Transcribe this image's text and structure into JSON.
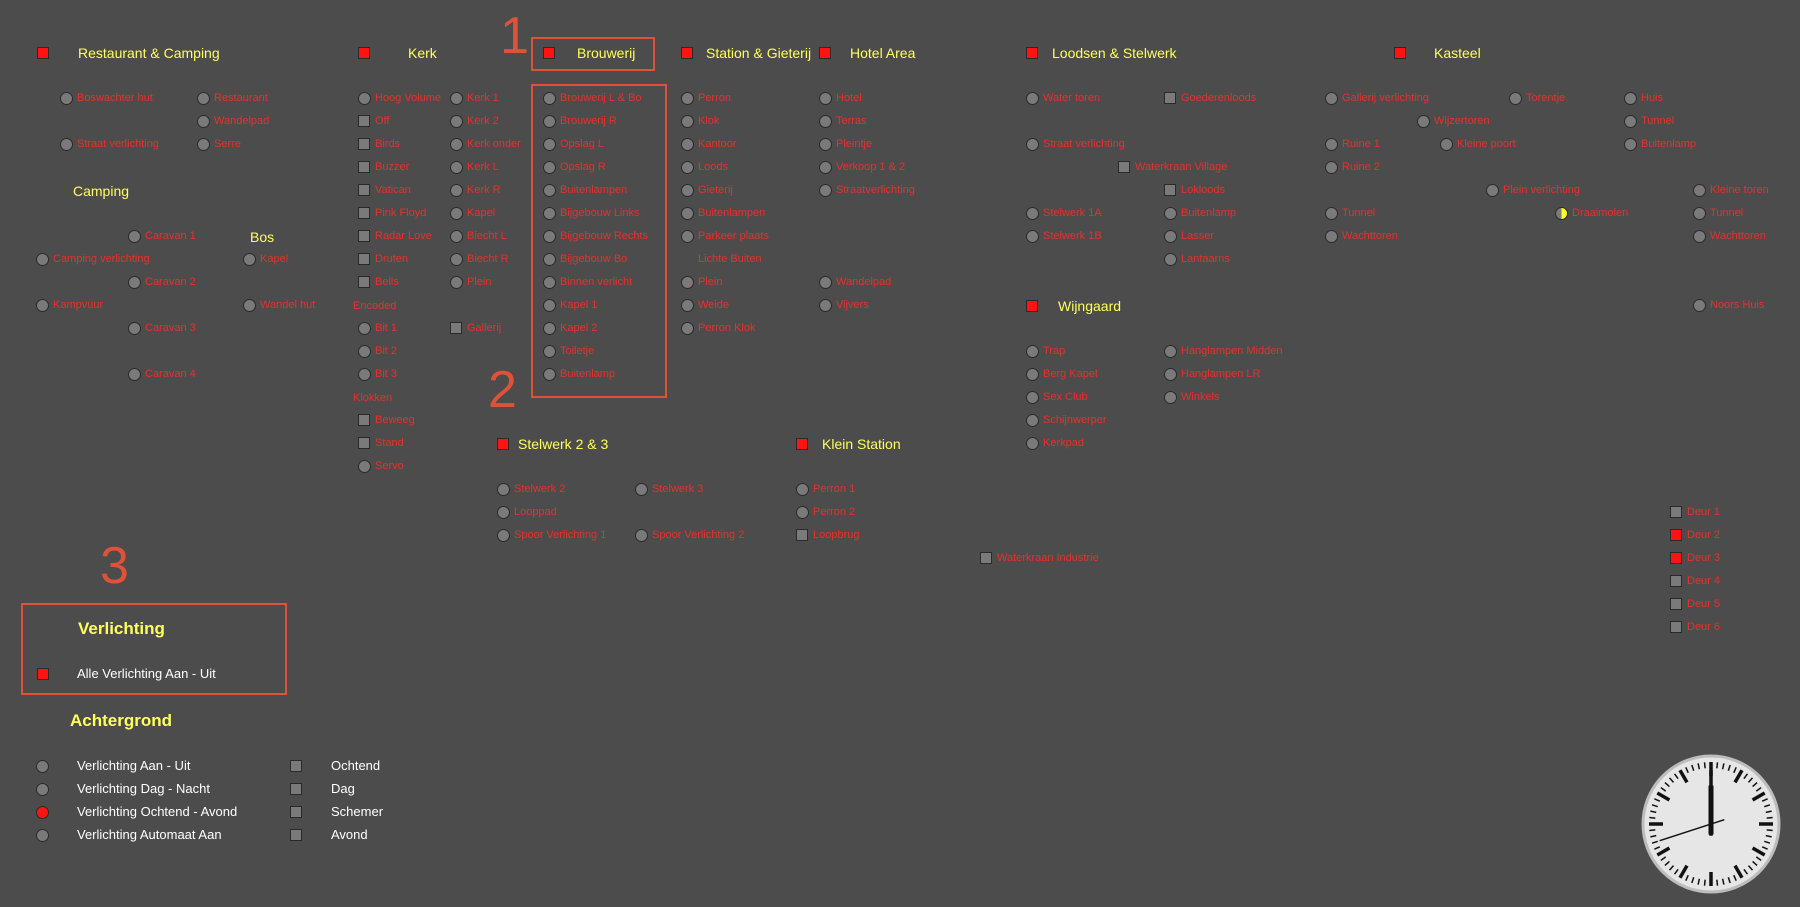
{
  "colors": {
    "bg": "#4c4c4c",
    "heading": "#ffff5a",
    "label": "#e8302c",
    "red": "#ff1212",
    "yellow": "#ffff22",
    "green": "#18c218",
    "off": "#7a7a7a",
    "annotation": "#e05238"
  },
  "annotations": {
    "n1": "1",
    "n2": "2",
    "n3": "3"
  },
  "headers": [
    {
      "text": "Restaurant & Camping",
      "state": "red"
    },
    {
      "text": "Kerk",
      "state": "red"
    },
    {
      "text": "Brouwerij",
      "state": "red"
    },
    {
      "text": "Station & Gieterij",
      "state": "red"
    },
    {
      "text": "Hotel Area",
      "state": "red"
    },
    {
      "text": "Loodsen & Stelwerk",
      "state": "red"
    },
    {
      "text": "Kasteel",
      "state": "red"
    },
    {
      "text": "Wijngaard",
      "state": "red"
    },
    {
      "text": "Stelwerk 2 & 3",
      "state": "red"
    },
    {
      "text": "Klein Station",
      "state": "red"
    }
  ],
  "subheaders": {
    "camping": "Camping",
    "bos": "Bos",
    "encoded": "Encoded",
    "klokken": "Klokken"
  },
  "items": [
    {
      "text": "Boswachter hut",
      "icon": "circle",
      "state": "off"
    },
    {
      "text": "Restaurant",
      "icon": "circle",
      "state": "off"
    },
    {
      "text": "Wandelpad",
      "icon": "circle",
      "state": "off"
    },
    {
      "text": "Straat verlichting",
      "icon": "circle",
      "state": "off"
    },
    {
      "text": "Serre",
      "icon": "circle",
      "state": "off"
    },
    {
      "text": "Caravan 1",
      "icon": "circle",
      "state": "off"
    },
    {
      "text": "Camping verlichting",
      "icon": "circle",
      "state": "off"
    },
    {
      "text": "Kapel",
      "icon": "circle",
      "state": "off"
    },
    {
      "text": "Caravan 2",
      "icon": "circle",
      "state": "off"
    },
    {
      "text": "Kampvuur",
      "icon": "circle",
      "state": "off"
    },
    {
      "text": "Wandel hut",
      "icon": "circle",
      "state": "off"
    },
    {
      "text": "Caravan 3",
      "icon": "circle",
      "state": "off"
    },
    {
      "text": "Caravan 4",
      "icon": "circle",
      "state": "off"
    },
    {
      "text": "Hoog Volume",
      "icon": "circle",
      "state": "off"
    },
    {
      "text": "Off",
      "icon": "square",
      "state": "yellow"
    },
    {
      "text": "Birds",
      "icon": "square",
      "state": "off"
    },
    {
      "text": "Buzzer",
      "icon": "square",
      "state": "off"
    },
    {
      "text": "Vatican",
      "icon": "square",
      "state": "off"
    },
    {
      "text": "Pink Floyd",
      "icon": "square",
      "state": "off"
    },
    {
      "text": "Radar Love",
      "icon": "square",
      "state": "off"
    },
    {
      "text": "Druten",
      "icon": "square",
      "state": "yellow"
    },
    {
      "text": "Bells",
      "icon": "square",
      "state": "off"
    },
    {
      "text": "Bit 1",
      "icon": "circle",
      "state": "yellow"
    },
    {
      "text": "Bit 2",
      "icon": "circle",
      "state": "yellow"
    },
    {
      "text": "Bit 3",
      "icon": "circle",
      "state": "yellow"
    },
    {
      "text": "Beweeg",
      "icon": "square",
      "state": "off"
    },
    {
      "text": "Stand",
      "icon": "square",
      "state": "off"
    },
    {
      "text": "Servo",
      "icon": "circle",
      "state": "off"
    },
    {
      "text": "Kerk 1",
      "icon": "circle",
      "state": "off"
    },
    {
      "text": "Kerk 2",
      "icon": "circle",
      "state": "off"
    },
    {
      "text": "Kerk onder",
      "icon": "circle",
      "state": "off"
    },
    {
      "text": "Kerk L",
      "icon": "circle",
      "state": "off"
    },
    {
      "text": "Kerk R",
      "icon": "circle",
      "state": "off"
    },
    {
      "text": "Kapel",
      "icon": "circle",
      "state": "off"
    },
    {
      "text": "Biecht L",
      "icon": "circle",
      "state": "off"
    },
    {
      "text": "Biecht R",
      "icon": "circle",
      "state": "off"
    },
    {
      "text": "Plein",
      "icon": "circle",
      "state": "off"
    },
    {
      "text": "Gallerij",
      "icon": "square",
      "state": "off"
    },
    {
      "text": "Brouwerij L & Bo",
      "icon": "circle",
      "state": "off"
    },
    {
      "text": "Brouwerij R",
      "icon": "circle",
      "state": "off"
    },
    {
      "text": "Opslag L",
      "icon": "circle",
      "state": "off"
    },
    {
      "text": "Opslag R",
      "icon": "circle",
      "state": "off"
    },
    {
      "text": "Buitenlampen",
      "icon": "circle",
      "state": "off"
    },
    {
      "text": "Bijgebouw Links",
      "icon": "circle",
      "state": "off"
    },
    {
      "text": "Bijgebouw Rechts",
      "icon": "circle",
      "state": "off"
    },
    {
      "text": "Bijgebouw Bo",
      "icon": "circle",
      "state": "off"
    },
    {
      "text": "Binnen verlicht",
      "icon": "circle",
      "state": "off"
    },
    {
      "text": "Kapel 1",
      "icon": "circle",
      "state": "off"
    },
    {
      "text": "Kapel 2",
      "icon": "circle",
      "state": "off"
    },
    {
      "text": "Toiletje",
      "icon": "circle",
      "state": "off"
    },
    {
      "text": "Buitenlamp",
      "icon": "circle",
      "state": "off"
    },
    {
      "text": "Perron",
      "icon": "circle",
      "state": "off"
    },
    {
      "text": "Klok",
      "icon": "circle",
      "state": "off"
    },
    {
      "text": "Kantoor",
      "icon": "circle",
      "state": "off"
    },
    {
      "text": "Loods",
      "icon": "circle",
      "state": "off"
    },
    {
      "text": "Gieterij",
      "icon": "circle",
      "state": "off"
    },
    {
      "text": "Buitenlampen",
      "icon": "circle",
      "state": "off"
    },
    {
      "text": "Parkeer plaats",
      "icon": "circle",
      "state": "off"
    },
    {
      "text": "Lichte Buiten",
      "icon": "none",
      "state": "off"
    },
    {
      "text": "Plein",
      "icon": "circle",
      "state": "off"
    },
    {
      "text": "Weide",
      "icon": "circle",
      "state": "off"
    },
    {
      "text": "Perron Klok",
      "icon": "circle",
      "state": "off"
    },
    {
      "text": "Hotel",
      "icon": "circle",
      "state": "off"
    },
    {
      "text": "Terras",
      "icon": "circle",
      "state": "off"
    },
    {
      "text": "Pleintje",
      "icon": "circle",
      "state": "off"
    },
    {
      "text": "Verkoop 1 & 2",
      "icon": "circle",
      "state": "off"
    },
    {
      "text": "Straatverlichting",
      "icon": "circle",
      "state": "off"
    },
    {
      "text": "Wandelpad",
      "icon": "circle",
      "state": "off"
    },
    {
      "text": "Vijvers",
      "icon": "circle",
      "state": "off"
    },
    {
      "text": "Water toren",
      "icon": "circle",
      "state": "off"
    },
    {
      "text": "Goederenloods",
      "icon": "square",
      "state": "off"
    },
    {
      "text": "Straat verlichting",
      "icon": "circle",
      "state": "off"
    },
    {
      "text": "Waterkraan Village",
      "icon": "square",
      "state": "green"
    },
    {
      "text": "Lokloods",
      "icon": "square",
      "state": "off"
    },
    {
      "text": "Stelwerk 1A",
      "icon": "circle",
      "state": "off"
    },
    {
      "text": "Buitenlamp",
      "icon": "circle",
      "state": "off"
    },
    {
      "text": "Stelwerk 1B",
      "icon": "circle",
      "state": "off"
    },
    {
      "text": "Lasser",
      "icon": "circle",
      "state": "off"
    },
    {
      "text": "Lantaarns",
      "icon": "circle",
      "state": "off"
    },
    {
      "text": "Gallerij verlichting",
      "icon": "circle",
      "state": "off"
    },
    {
      "text": "Torentje",
      "icon": "circle",
      "state": "off"
    },
    {
      "text": "Huis",
      "icon": "circle",
      "state": "off"
    },
    {
      "text": "Wijzertoren",
      "icon": "circle",
      "state": "off"
    },
    {
      "text": "Tunnel",
      "icon": "circle",
      "state": "off"
    },
    {
      "text": "Ruine 1",
      "icon": "circle",
      "state": "off"
    },
    {
      "text": "Kleine poort",
      "icon": "circle",
      "state": "off"
    },
    {
      "text": "Buitenlamp",
      "icon": "circle",
      "state": "off"
    },
    {
      "text": "Ruine 2",
      "icon": "circle",
      "state": "off"
    },
    {
      "text": "Plein verlichting",
      "icon": "circle",
      "state": "off"
    },
    {
      "text": "Kleine toren",
      "icon": "circle",
      "state": "off"
    },
    {
      "text": "Tunnel",
      "icon": "circle",
      "state": "off"
    },
    {
      "text": "Draaimolen",
      "icon": "circle",
      "state": "half"
    },
    {
      "text": "Tunnel",
      "icon": "circle",
      "state": "off"
    },
    {
      "text": "Wachttoren",
      "icon": "circle",
      "state": "off"
    },
    {
      "text": "Wachttoren",
      "icon": "circle",
      "state": "off"
    },
    {
      "text": "Noors Huis",
      "icon": "circle",
      "state": "off"
    },
    {
      "text": "Trap",
      "icon": "circle",
      "state": "off"
    },
    {
      "text": "Hanglampen Midden",
      "icon": "circle",
      "state": "off"
    },
    {
      "text": "Berg Kapel",
      "icon": "circle",
      "state": "off"
    },
    {
      "text": "Hanglampen LR",
      "icon": "circle",
      "state": "off"
    },
    {
      "text": "Sex Club",
      "icon": "circle",
      "state": "off"
    },
    {
      "text": "Winkels",
      "icon": "circle",
      "state": "off"
    },
    {
      "text": "Schijnwerper",
      "icon": "circle",
      "state": "off"
    },
    {
      "text": "Kerkpad",
      "icon": "circle",
      "state": "off"
    },
    {
      "text": "Stelwerk 2",
      "icon": "circle",
      "state": "off"
    },
    {
      "text": "Stelwerk 3",
      "icon": "circle",
      "state": "off"
    },
    {
      "text": "Looppad",
      "icon": "circle",
      "state": "off"
    },
    {
      "text": "Spoor Verlichting 1",
      "icon": "circle",
      "state": "off"
    },
    {
      "text": "Spoor Verlichting 2",
      "icon": "circle",
      "state": "off"
    },
    {
      "text": "Perron 1",
      "icon": "circle",
      "state": "off"
    },
    {
      "text": "Perron 2",
      "icon": "circle",
      "state": "off"
    },
    {
      "text": "Loopbrug",
      "icon": "square",
      "state": "off"
    },
    {
      "text": "Waterkraan Industrie",
      "icon": "square",
      "state": "green"
    },
    {
      "text": "Deur 1",
      "icon": "square",
      "state": "green"
    },
    {
      "text": "Deur 2",
      "icon": "square",
      "state": "red"
    },
    {
      "text": "Deur 3",
      "icon": "square",
      "state": "red"
    },
    {
      "text": "Deur 4",
      "icon": "square",
      "state": "green"
    },
    {
      "text": "Deur 5",
      "icon": "square",
      "state": "green"
    },
    {
      "text": "Deur 6",
      "icon": "square",
      "state": "green"
    }
  ],
  "verlichting": {
    "title": "Verlichting",
    "items": [
      {
        "text": "Alle Verlichting Aan - Uit",
        "icon": "square",
        "state": "red"
      }
    ]
  },
  "achtergrond": {
    "title": "Achtergrond",
    "items": [
      {
        "text": "Verlichting Aan - Uit",
        "icon": "circle",
        "state": "off"
      },
      {
        "text": "Verlichting Dag - Nacht",
        "icon": "circle",
        "state": "off"
      },
      {
        "text": "Verlichting Ochtend - Avond",
        "icon": "circle",
        "state": "red"
      },
      {
        "text": "Verlichting Automaat Aan",
        "icon": "circle",
        "state": "off"
      },
      {
        "text": "Ochtend",
        "icon": "square",
        "state": "yellow"
      },
      {
        "text": "Dag",
        "icon": "square",
        "state": "off"
      },
      {
        "text": "Schemer",
        "icon": "square",
        "state": "off"
      },
      {
        "text": "Avond",
        "icon": "square",
        "state": "off"
      }
    ]
  },
  "clock": {
    "hours": 12,
    "minutes": 0,
    "seconds": 42
  }
}
